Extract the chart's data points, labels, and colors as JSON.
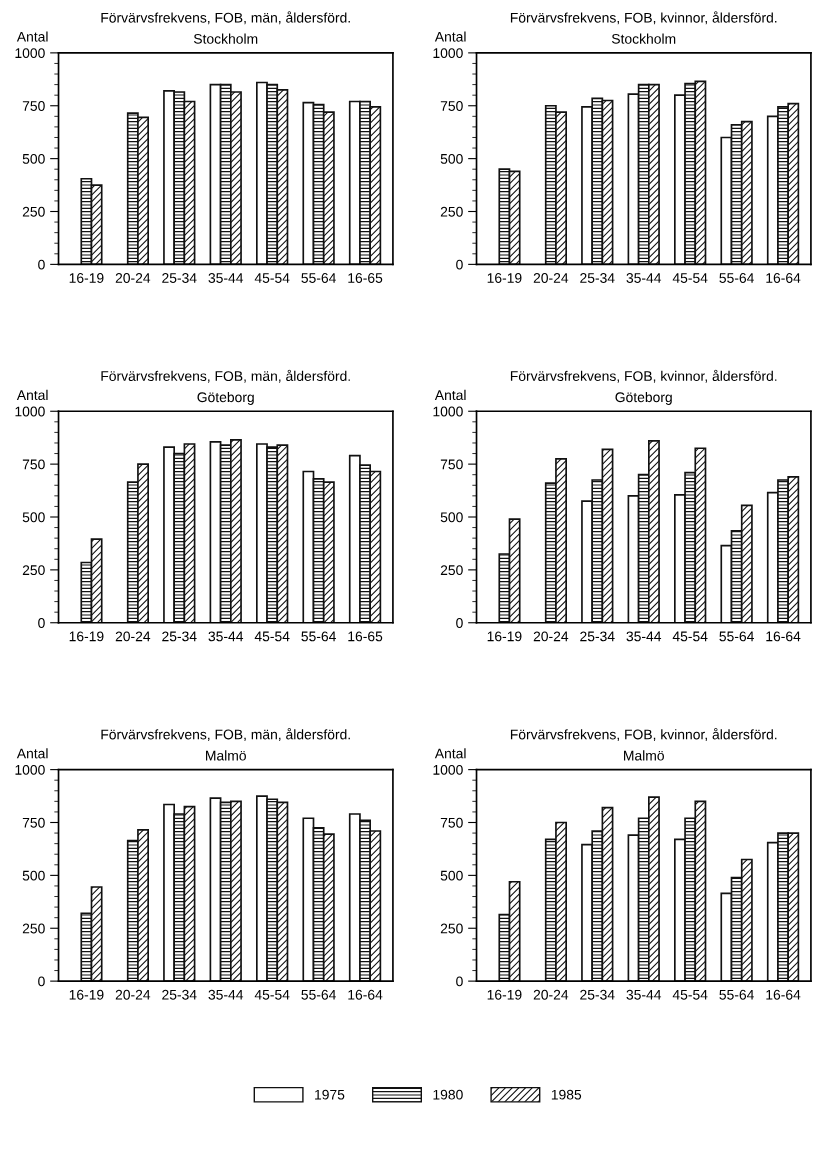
{
  "chart_data": [
    {
      "type": "bar",
      "title": "Förvärvsfrekvens, FOB, män, åldersförd.",
      "subtitle": "Stockholm",
      "ylabel": "Antal",
      "categories": [
        "16-19",
        "20-24",
        "25-34",
        "35-44",
        "45-54",
        "55-64",
        "16-65"
      ],
      "ylim": [
        0,
        1000
      ],
      "yticks": [
        0,
        250,
        500,
        750,
        1000
      ],
      "grid": false,
      "legend": "bottom",
      "series": [
        {
          "name": "1975",
          "color": "#ffffff",
          "values": [
            null,
            null,
            820,
            850,
            860,
            765,
            770
          ]
        },
        {
          "name": "1980",
          "color": "#111111",
          "values": [
            405,
            715,
            815,
            850,
            850,
            755,
            770
          ]
        },
        {
          "name": "1985",
          "color": "#111111",
          "values": [
            375,
            695,
            770,
            815,
            825,
            720,
            745
          ]
        }
      ]
    },
    {
      "type": "bar",
      "title": "Förvärvsfrekvens, FOB, kvinnor, åldersförd.",
      "subtitle": "Stockholm",
      "ylabel": "Antal",
      "categories": [
        "16-19",
        "20-24",
        "25-34",
        "35-44",
        "45-54",
        "55-64",
        "16-64"
      ],
      "ylim": [
        0,
        1000
      ],
      "yticks": [
        0,
        250,
        500,
        750,
        1000
      ],
      "grid": false,
      "series": [
        {
          "color": "#ffffff",
          "values": [
            null,
            null,
            745,
            805,
            800,
            600,
            700
          ]
        },
        {
          "color": "#111111",
          "values": [
            450,
            750,
            785,
            850,
            855,
            660,
            745
          ]
        },
        {
          "color": "#111111",
          "values": [
            440,
            720,
            775,
            850,
            865,
            675,
            760
          ]
        }
      ]
    },
    {
      "type": "bar",
      "title": "Förvärvsfrekvens, FOB, män, åldersförd.",
      "subtitle": "Göteborg",
      "ylabel": "Antal",
      "categories": [
        "16-19",
        "20-24",
        "25-34",
        "35-44",
        "45-54",
        "55-64",
        "16-65"
      ],
      "ylim": [
        0,
        1000
      ],
      "yticks": [
        0,
        250,
        500,
        750,
        1000
      ],
      "grid": false,
      "series": [
        {
          "color": "#ffffff",
          "values": [
            null,
            null,
            830,
            855,
            845,
            715,
            790
          ]
        },
        {
          "color": "#111111",
          "values": [
            285,
            665,
            800,
            840,
            830,
            680,
            745
          ]
        },
        {
          "color": "#111111",
          "values": [
            395,
            750,
            845,
            865,
            840,
            665,
            715
          ]
        }
      ]
    },
    {
      "type": "bar",
      "title": "Förvärvsfrekvens, FOB, kvinnor, åldersförd.",
      "subtitle": "Göteborg",
      "ylabel": "Antal",
      "categories": [
        "16-19",
        "20-24",
        "25-34",
        "35-44",
        "45-54",
        "55-64",
        "16-64"
      ],
      "ylim": [
        0,
        1000
      ],
      "yticks": [
        0,
        250,
        500,
        750,
        1000
      ],
      "grid": false,
      "series": [
        {
          "color": "#ffffff",
          "values": [
            null,
            null,
            575,
            600,
            605,
            365,
            615
          ]
        },
        {
          "color": "#111111",
          "values": [
            325,
            660,
            675,
            700,
            710,
            435,
            675
          ]
        },
        {
          "color": "#111111",
          "values": [
            490,
            775,
            820,
            860,
            825,
            555,
            690
          ]
        }
      ]
    },
    {
      "type": "bar",
      "title": "Förvärvsfrekvens, FOB, män, åldersförd.",
      "subtitle": "Malmö",
      "ylabel": "Antal",
      "categories": [
        "16-19",
        "20-24",
        "25-34",
        "35-44",
        "45-54",
        "55-64",
        "16-64"
      ],
      "ylim": [
        0,
        1000
      ],
      "yticks": [
        0,
        250,
        500,
        750,
        1000
      ],
      "grid": false,
      "series": [
        {
          "color": "#ffffff",
          "values": [
            null,
            null,
            835,
            865,
            875,
            770,
            790
          ]
        },
        {
          "color": "#111111",
          "values": [
            320,
            665,
            790,
            845,
            860,
            725,
            760
          ]
        },
        {
          "color": "#111111",
          "values": [
            445,
            715,
            825,
            850,
            845,
            695,
            710
          ]
        }
      ]
    },
    {
      "type": "bar",
      "title": "Förvärvsfrekvens, FOB, kvinnor, åldersförd.",
      "subtitle": "Malmö",
      "ylabel": "Antal",
      "categories": [
        "16-19",
        "20-24",
        "25-34",
        "35-44",
        "45-54",
        "55-64",
        "16-64"
      ],
      "ylim": [
        0,
        1000
      ],
      "yticks": [
        0,
        250,
        500,
        750,
        1000
      ],
      "grid": false,
      "series": [
        {
          "color": "#ffffff",
          "values": [
            null,
            null,
            645,
            690,
            670,
            415,
            655
          ]
        },
        {
          "color": "#111111",
          "values": [
            315,
            670,
            710,
            770,
            770,
            490,
            700
          ]
        },
        {
          "color": "#111111",
          "values": [
            470,
            750,
            820,
            870,
            850,
            575,
            700
          ]
        }
      ]
    }
  ]
}
